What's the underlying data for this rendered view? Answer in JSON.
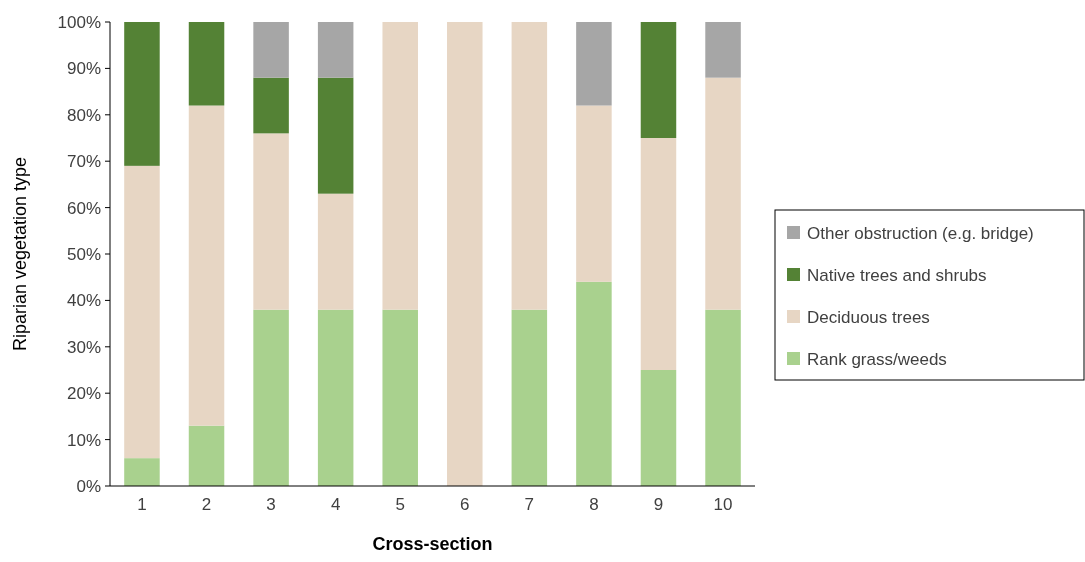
{
  "chart_data": {
    "type": "bar",
    "stacked": true,
    "xlabel": "Cross-section",
    "ylabel": "Riparian vegetation type",
    "categories": [
      "1",
      "2",
      "3",
      "4",
      "5",
      "6",
      "7",
      "8",
      "9",
      "10"
    ],
    "series": [
      {
        "name": "Rank grass/weeds",
        "color": "#a9d18e",
        "values": [
          6,
          13,
          38,
          38,
          38,
          0,
          38,
          44,
          25,
          38
        ]
      },
      {
        "name": "Deciduous trees",
        "color": "#e7d6c4",
        "values": [
          63,
          69,
          38,
          25,
          62,
          100,
          62,
          38,
          50,
          50
        ]
      },
      {
        "name": "Native trees and shrubs",
        "color": "#548235",
        "values": [
          31,
          18,
          12,
          25,
          0,
          0,
          0,
          0,
          25,
          0
        ]
      },
      {
        "name": "Other obstruction (e.g. bridge)",
        "color": "#a6a6a6",
        "values": [
          0,
          0,
          12,
          12,
          0,
          0,
          0,
          18,
          0,
          12
        ]
      }
    ],
    "ylim": [
      0,
      100
    ],
    "yticks": [
      {
        "value": 0,
        "label": "0%"
      },
      {
        "value": 10,
        "label": "10%"
      },
      {
        "value": 20,
        "label": "20%"
      },
      {
        "value": 30,
        "label": "30%"
      },
      {
        "value": 40,
        "label": "40%"
      },
      {
        "value": 50,
        "label": "50%"
      },
      {
        "value": 60,
        "label": "60%"
      },
      {
        "value": 70,
        "label": "70%"
      },
      {
        "value": 80,
        "label": "80%"
      },
      {
        "value": 90,
        "label": "90%"
      },
      {
        "value": 100,
        "label": "100%"
      }
    ],
    "grid": false,
    "legend": "right"
  }
}
